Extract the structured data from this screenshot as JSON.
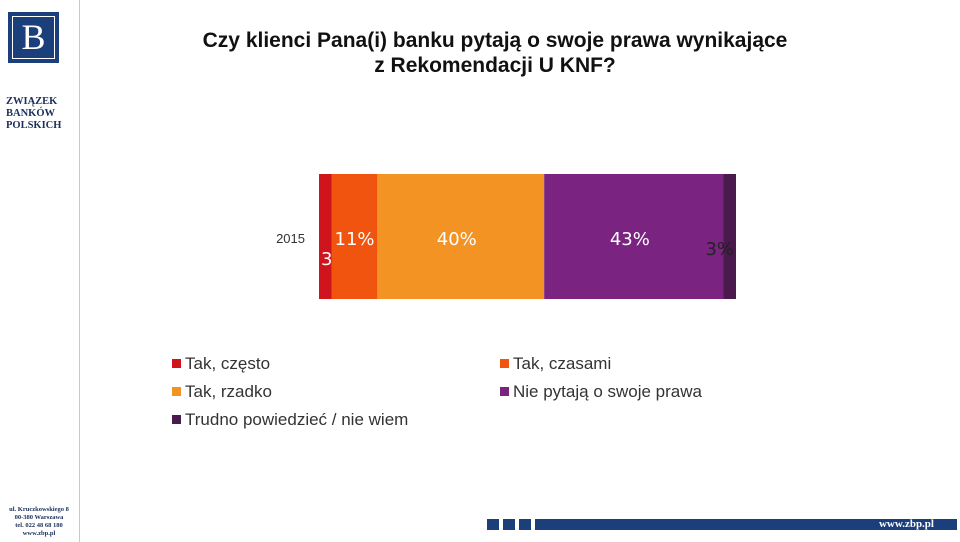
{
  "sidebar": {
    "logo_letter": "B",
    "org_lines": [
      "ZWIĄZEK",
      "BANKÓW",
      "POLSKICH"
    ],
    "address_lines": [
      "ul. Kruczkowskiego 8",
      "00-380 Warszawa",
      "tel. 022 48 68 180",
      "www.zbp.pl"
    ]
  },
  "title_lines": [
    "Czy klienci Pana(i) banku pytają o swoje prawa wynikające",
    "z Rekomendacji U KNF?"
  ],
  "footer": {
    "url": "www.zbp.pl"
  },
  "chart_data": {
    "type": "bar",
    "orientation": "horizontal",
    "stacked": true,
    "title": "Czy klienci Pana(i) banku pytają o swoje prawa wynikające z Rekomendacji U KNF?",
    "categories": [
      "2015"
    ],
    "series": [
      {
        "name": "Tak, często",
        "values": [
          3
        ],
        "label": "3%",
        "color": "#d0141d"
      },
      {
        "name": "Tak, czasami",
        "values": [
          11
        ],
        "label": "11%",
        "color": "#f0540f"
      },
      {
        "name": "Tak, rzadko",
        "values": [
          40
        ],
        "label": "40%",
        "color": "#f39324"
      },
      {
        "name": "Nie pytają o swoje prawa",
        "values": [
          43
        ],
        "label": "43%",
        "color": "#7a2380"
      },
      {
        "name": "Trudno powiedzieć / nie wiem",
        "values": [
          3
        ],
        "label": "3%",
        "color": "#4a1a4c"
      }
    ],
    "xlim": [
      0,
      100
    ],
    "grid": false,
    "legend_position": "bottom"
  }
}
